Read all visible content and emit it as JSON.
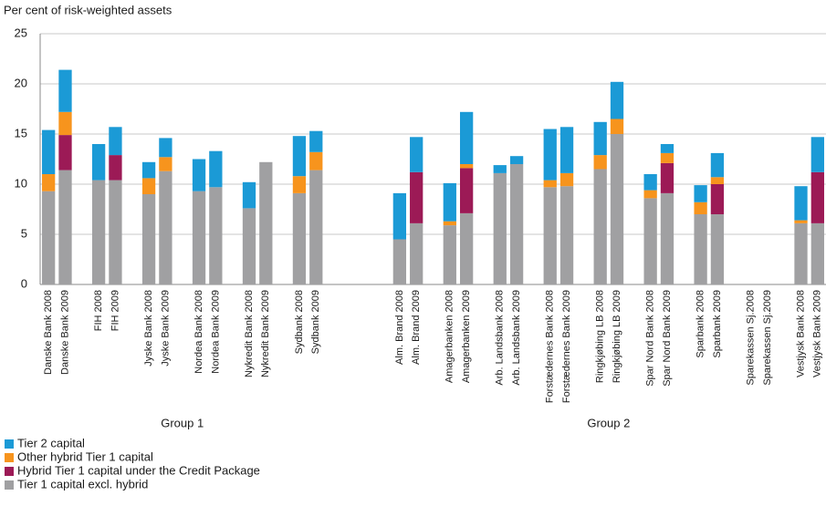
{
  "chart_data": {
    "type": "stacked_bar",
    "y_axis_label": "Per cent of risk-weighted assets",
    "categories": [
      "Danske Bank 2008",
      "Danske Bank 2009",
      null,
      "FIH 2008",
      "FIH 2009",
      null,
      "Jyske Bank 2008",
      "Jyske Bank 2009",
      null,
      "Nordea Bank 2008",
      "Nordea Bank 2009",
      null,
      "Nykredit Bank 2008",
      "Nykredit Bank 2009",
      null,
      "Sydbank 2008",
      "Sydbank 2009",
      null,
      null,
      null,
      null,
      "Alm. Brand 2008",
      "Alm. Brand 2009",
      null,
      "Amagerbanken 2008",
      "Amagerbanken 2009",
      null,
      "Arb. Landsbank 2008",
      "Arb. Landsbank 2009",
      null,
      "Forstædernes Bank 2008",
      "Forstædernes Bank 2009",
      null,
      "Ringkjøbing LB 2008",
      "Ringkjøbing LB 2009",
      null,
      "Spar Nord Bank 2008",
      "Spar Nord Bank 2009",
      null,
      "Sparbank 2008",
      "Sparbank 2009",
      null,
      "Sparekassen Sj.2008",
      "Sparekassen Sj.2009",
      null,
      "Vestjysk Bank 2008",
      "Vestjysk Bank 2009"
    ],
    "group_labels": [
      "Group 1",
      "Group 2"
    ],
    "series": [
      {
        "name": "Tier 1 capital excl. hybrid",
        "color": "#a0a0a2",
        "values": [
          9.3,
          11.4,
          null,
          10.4,
          10.4,
          null,
          9.0,
          11.3,
          null,
          9.3,
          9.7,
          null,
          7.6,
          12.2,
          null,
          9.1,
          11.4,
          null,
          null,
          null,
          null,
          4.5,
          6.1,
          null,
          5.9,
          7.1,
          null,
          11.1,
          12.0,
          null,
          9.7,
          9.8,
          null,
          11.5,
          15.0,
          null,
          8.6,
          9.1,
          null,
          7.0,
          7.0,
          null,
          null,
          null,
          null,
          6.1,
          6.1
        ]
      },
      {
        "name": "Hybrid Tier 1 capital under the Credit Package",
        "color": "#9c1a56",
        "values": [
          0,
          3.5,
          null,
          0,
          2.5,
          null,
          0,
          0,
          null,
          0,
          0,
          null,
          0,
          0,
          null,
          0,
          0,
          null,
          null,
          null,
          null,
          0,
          5.1,
          null,
          0,
          4.5,
          null,
          0,
          0,
          null,
          0,
          0,
          null,
          0,
          0,
          null,
          0,
          3.0,
          null,
          0,
          3.0,
          null,
          null,
          null,
          null,
          0,
          5.1
        ]
      },
      {
        "name": "Other hybrid Tier 1 capital",
        "color": "#f7941d",
        "values": [
          1.7,
          2.3,
          null,
          0,
          0,
          null,
          1.6,
          1.4,
          null,
          0,
          0,
          null,
          0,
          0,
          null,
          1.7,
          1.8,
          null,
          null,
          null,
          null,
          0,
          0,
          null,
          0.4,
          0.4,
          null,
          0,
          0,
          null,
          0.7,
          1.3,
          null,
          1.4,
          1.5,
          null,
          0.8,
          1.0,
          null,
          1.2,
          0.7,
          null,
          null,
          null,
          null,
          0.3,
          0
        ]
      },
      {
        "name": "Tier 2 capital",
        "color": "#1b9ad6",
        "values": [
          4.4,
          4.2,
          null,
          3.6,
          2.8,
          null,
          1.6,
          1.9,
          null,
          3.2,
          3.6,
          null,
          2.6,
          0,
          null,
          4.0,
          2.1,
          null,
          null,
          null,
          null,
          4.6,
          3.5,
          null,
          3.8,
          5.2,
          null,
          0.8,
          0.8,
          null,
          5.1,
          4.6,
          null,
          3.3,
          3.7,
          null,
          1.6,
          0.9,
          null,
          1.7,
          2.4,
          null,
          null,
          null,
          null,
          3.4,
          3.5
        ]
      }
    ],
    "ylim": [
      0,
      25
    ],
    "yticks": [
      0,
      5,
      10,
      15,
      20,
      25
    ],
    "grid": true
  }
}
